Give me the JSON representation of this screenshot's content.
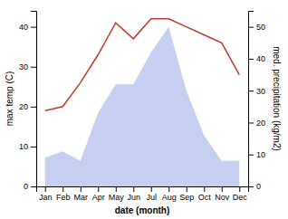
{
  "chart_data": {
    "type": "line",
    "xlabel": "date (month)",
    "ylabel": "max temp (C)",
    "y2label": "med. precipitation (kg/m2)",
    "categories": [
      "Jan",
      "Feb",
      "Mar",
      "Apr",
      "May",
      "Jun",
      "Jul",
      "Aug",
      "Sep",
      "Oct",
      "Nov",
      "Dec"
    ],
    "series": [
      {
        "type": "line",
        "color": "#c0392b",
        "values": [
          19,
          20,
          26,
          33,
          41,
          37,
          42,
          42,
          40,
          38,
          36,
          28
        ]
      },
      {
        "type": "area",
        "axis": "y2",
        "color": "#c5cff0",
        "values": [
          9,
          11,
          8,
          23,
          32,
          32,
          42,
          50,
          30,
          16,
          8,
          8
        ]
      }
    ],
    "ylim": [
      0,
      44
    ],
    "yticks": [
      0,
      10,
      20,
      30,
      40
    ],
    "y2lim": [
      0,
      55
    ],
    "y2ticks": [
      0,
      10,
      20,
      30,
      40,
      50
    ],
    "grid": false
  }
}
